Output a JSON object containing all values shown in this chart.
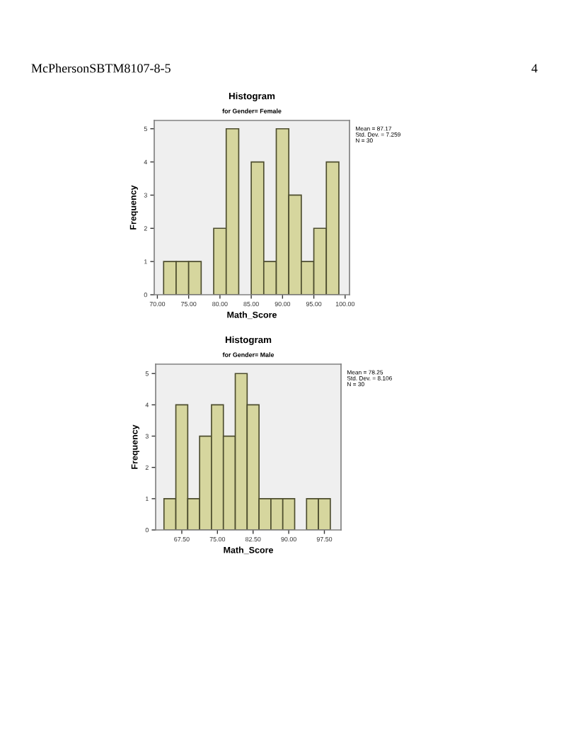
{
  "chart_data": [
    {
      "type": "histogram",
      "title": "Histogram",
      "subtitle": "for Gender= Female",
      "xlabel": "Math_Score",
      "ylabel": "Frequency",
      "bins": [
        71,
        73,
        75,
        77,
        79,
        81,
        83,
        85,
        87,
        89,
        91,
        93,
        95,
        97,
        99
      ],
      "values": [
        1,
        1,
        1,
        0,
        2,
        5,
        0,
        4,
        1,
        5,
        3,
        1,
        2,
        4
      ],
      "color": "#d6d69e",
      "xlim": [
        69.5,
        100.7
      ],
      "ylim": [
        0,
        5.25
      ],
      "xticks": [
        {
          "value": 70,
          "label": "70.00"
        },
        {
          "value": 75,
          "label": "75.00"
        },
        {
          "value": 80,
          "label": "80.00"
        },
        {
          "value": 85,
          "label": "85.00"
        },
        {
          "value": 90,
          "label": "90.00"
        },
        {
          "value": 95,
          "label": "95.00"
        },
        {
          "value": 100,
          "label": "100.00"
        }
      ],
      "yticks": [
        0,
        1,
        2,
        3,
        4,
        5
      ],
      "annotations": [
        "Mean = 87.17\nStd. Dev. = 7.259\nN = 30",
        "McPhersonSBTM8107-8-5",
        "4"
      ]
    },
    {
      "type": "histogram",
      "title": "Histogram",
      "subtitle": "for Gender= Male",
      "xlabel": "Math_Score",
      "ylabel": "Frequency",
      "bins": [
        63.75,
        66.25,
        68.75,
        71.25,
        73.75,
        76.25,
        78.75,
        81.25,
        83.75,
        86.25,
        88.75,
        91.25,
        93.75,
        96.25,
        98.75
      ],
      "values": [
        1,
        4,
        1,
        3,
        4,
        3,
        5,
        4,
        1,
        1,
        1,
        0,
        1,
        1
      ],
      "color": "#d6d69e",
      "xlim": [
        62,
        101
      ],
      "ylim": [
        0,
        5.3
      ],
      "xticks": [
        {
          "value": 67.5,
          "label": "67.50"
        },
        {
          "value": 75,
          "label": "75.00"
        },
        {
          "value": 82.5,
          "label": "82.50"
        },
        {
          "value": 90,
          "label": "90.00"
        },
        {
          "value": 97.5,
          "label": "97.50"
        }
      ],
      "yticks": [
        0,
        1,
        2,
        3,
        4,
        5
      ],
      "annotations": [
        "Mean = 78.25\nStd. Dev. = 8.106\nN = 30"
      ]
    }
  ]
}
